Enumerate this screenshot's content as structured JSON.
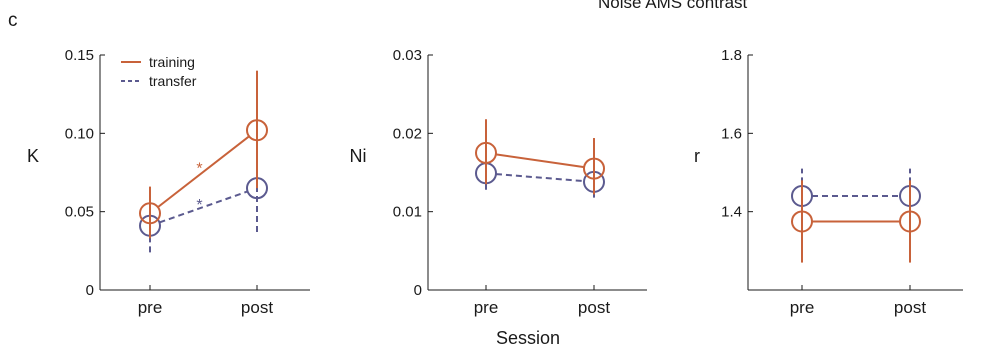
{
  "figure": {
    "panel_label": "c",
    "title": "Noise AMS contrast",
    "xlabel": "Session"
  },
  "colors": {
    "training": "#c8623a",
    "transfer": "#5b5a8f",
    "axis": "#1a1a1a"
  },
  "chart_data": [
    {
      "type": "line",
      "ylabel": "K",
      "categories": [
        "pre",
        "post"
      ],
      "ylim": [
        0,
        0.15
      ],
      "yticks": [
        0,
        0.05,
        0.1,
        0.15
      ],
      "ytick_labels": [
        "0",
        "0.05",
        "0.10",
        "0.15"
      ],
      "legend": {
        "position": "top-left",
        "entries": [
          "training",
          "transfer"
        ]
      },
      "annotations": [
        {
          "text": "*",
          "series": "training"
        },
        {
          "text": "*",
          "series": "transfer"
        }
      ],
      "series": [
        {
          "name": "training",
          "values": [
            0.049,
            0.102
          ],
          "err_low": [
            0.033,
            0.065
          ],
          "err_high": [
            0.066,
            0.14
          ],
          "style": "solid"
        },
        {
          "name": "transfer",
          "values": [
            0.041,
            0.065
          ],
          "err_low": [
            0.024,
            0.037
          ],
          "err_high": [
            0.055,
            0.084
          ],
          "style": "dashed"
        }
      ]
    },
    {
      "type": "line",
      "ylabel": "Ni",
      "categories": [
        "pre",
        "post"
      ],
      "ylim": [
        0,
        0.03
      ],
      "yticks": [
        0,
        0.01,
        0.02,
        0.03
      ],
      "ytick_labels": [
        "0",
        "0.01",
        "0.02",
        "0.03"
      ],
      "series": [
        {
          "name": "training",
          "values": [
            0.0175,
            0.0155
          ],
          "err_low": [
            0.0135,
            0.0122
          ],
          "err_high": [
            0.0218,
            0.0194
          ],
          "style": "solid"
        },
        {
          "name": "transfer",
          "values": [
            0.0149,
            0.0138
          ],
          "err_low": [
            0.0128,
            0.0118
          ],
          "err_high": [
            0.0168,
            0.0158
          ],
          "style": "dashed"
        }
      ]
    },
    {
      "type": "line",
      "ylabel": "r",
      "categories": [
        "pre",
        "post"
      ],
      "ylim": [
        1.2,
        1.8
      ],
      "yticks": [
        1.4,
        1.6,
        1.8
      ],
      "ytick_labels": [
        "1.4",
        "1.6",
        "1.8"
      ],
      "series": [
        {
          "name": "training",
          "values": [
            1.375,
            1.375
          ],
          "err_low": [
            1.27,
            1.27
          ],
          "err_high": [
            1.48,
            1.48
          ],
          "style": "solid"
        },
        {
          "name": "transfer",
          "values": [
            1.44,
            1.44
          ],
          "err_low": [
            1.37,
            1.37
          ],
          "err_high": [
            1.51,
            1.51
          ],
          "style": "dashed"
        }
      ]
    }
  ]
}
